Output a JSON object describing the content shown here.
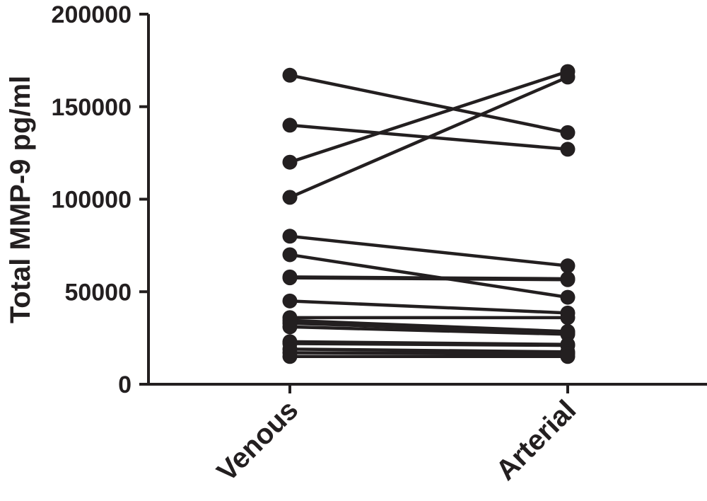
{
  "chart_data": {
    "type": "line",
    "subtype": "paired before-after plot",
    "title": "",
    "xlabel": "",
    "ylabel": "Total MMP-9 pg/ml",
    "categories": [
      "Venous",
      "Arterial"
    ],
    "ylim": [
      0,
      200000
    ],
    "yticks": [
      0,
      50000,
      100000,
      150000,
      200000
    ],
    "ytick_labels": [
      "0",
      "50000",
      "100000",
      "150000",
      "200000"
    ],
    "grid": false,
    "legend": "none",
    "line_color": "#231f20",
    "pairs": [
      {
        "venous": 167000,
        "arterial": 136000
      },
      {
        "venous": 140000,
        "arterial": 127000
      },
      {
        "venous": 120000,
        "arterial": 169000
      },
      {
        "venous": 101000,
        "arterial": 166000
      },
      {
        "venous": 80000,
        "arterial": 64000
      },
      {
        "venous": 70000,
        "arterial": 47000
      },
      {
        "venous": 58000,
        "arterial": 57000
      },
      {
        "venous": 57500,
        "arterial": 56500
      },
      {
        "venous": 45000,
        "arterial": 38500
      },
      {
        "venous": 36000,
        "arterial": 36000
      },
      {
        "venous": 34500,
        "arterial": 28500
      },
      {
        "venous": 33000,
        "arterial": 28000
      },
      {
        "venous": 31000,
        "arterial": 27000
      },
      {
        "venous": 23000,
        "arterial": 21500
      },
      {
        "venous": 22000,
        "arterial": 21000
      },
      {
        "venous": 19000,
        "arterial": 17500
      },
      {
        "venous": 17000,
        "arterial": 16500
      },
      {
        "venous": 15000,
        "arterial": 15000
      }
    ]
  }
}
